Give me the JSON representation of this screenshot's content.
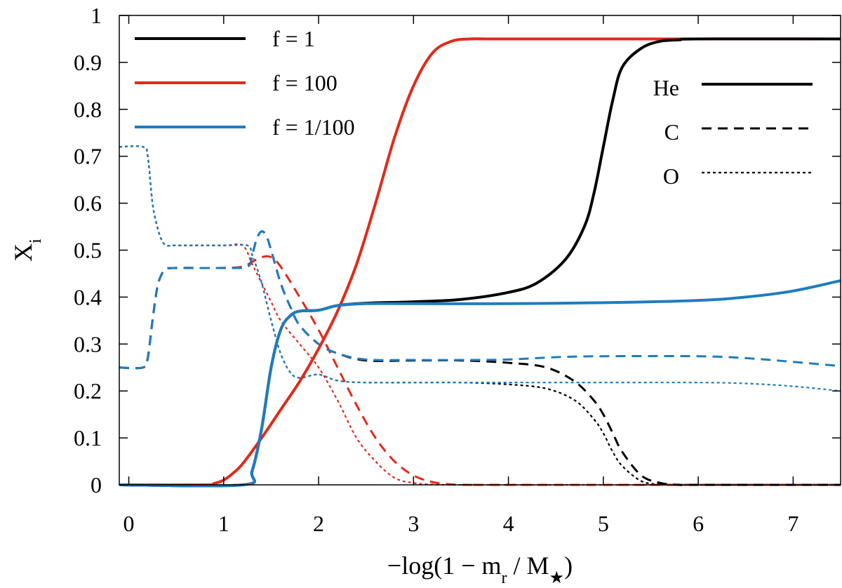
{
  "chart_data": {
    "type": "line",
    "title": "",
    "xlabel": "−log(1 − m_r / M_★)",
    "ylabel": "X_i",
    "xlim": [
      -0.1,
      7.5
    ],
    "ylim": [
      0,
      1
    ],
    "grid": false,
    "x_ticks": [
      0,
      1,
      2,
      3,
      4,
      5,
      6,
      7
    ],
    "x_tick_labels": [
      "0",
      "1",
      "2",
      "3",
      "4",
      "5",
      "6",
      "7"
    ],
    "y_ticks": [
      0,
      0.1,
      0.2,
      0.3,
      0.4,
      0.5,
      0.6,
      0.7,
      0.8,
      0.9,
      1
    ],
    "y_tick_labels": [
      "0",
      "0.1",
      "0.2",
      "0.3",
      "0.4",
      "0.5",
      "0.6",
      "0.7",
      "0.8",
      "0.9",
      "1"
    ],
    "legend_models": {
      "placement": "top-left",
      "entries": [
        {
          "label": "f = 1",
          "color": "#000000"
        },
        {
          "label": "f = 100",
          "color": "#e3291a"
        },
        {
          "label": "f = 1/100",
          "color": "#1f7cc1"
        }
      ]
    },
    "legend_species": {
      "placement": "top-right",
      "entries": [
        {
          "label": "He",
          "style": "solid"
        },
        {
          "label": "C",
          "style": "dashed"
        },
        {
          "label": "O",
          "style": "dotted"
        }
      ]
    },
    "series": [
      {
        "name": "He f = 1",
        "model": "f = 1",
        "element": "He",
        "color": "#000000",
        "style": "solid",
        "x": [
          -0.1,
          1.2,
          1.3,
          1.4,
          1.5,
          1.6,
          1.7,
          1.8,
          2.0,
          2.2,
          2.5,
          3.0,
          3.5,
          4.0,
          4.3,
          4.6,
          4.8,
          4.9,
          5.0,
          5.1,
          5.2,
          5.4,
          5.6,
          5.8,
          6.0,
          7.5
        ],
        "y": [
          0.0,
          0.0,
          0.03,
          0.12,
          0.25,
          0.33,
          0.36,
          0.37,
          0.372,
          0.382,
          0.387,
          0.39,
          0.395,
          0.41,
          0.43,
          0.48,
          0.55,
          0.62,
          0.72,
          0.82,
          0.89,
          0.93,
          0.945,
          0.948,
          0.95,
          0.95
        ]
      },
      {
        "name": "He f = 100",
        "model": "f = 100",
        "element": "He",
        "color": "#e3291a",
        "style": "solid",
        "x": [
          -0.1,
          0.8,
          0.9,
          1.0,
          1.1,
          1.2,
          1.4,
          1.6,
          1.8,
          2.0,
          2.2,
          2.4,
          2.6,
          2.8,
          3.0,
          3.2,
          3.4,
          3.6,
          3.8,
          4.0,
          7.5
        ],
        "y": [
          0.0,
          0.0,
          0.003,
          0.01,
          0.025,
          0.045,
          0.1,
          0.16,
          0.22,
          0.29,
          0.37,
          0.47,
          0.6,
          0.74,
          0.85,
          0.92,
          0.945,
          0.95,
          0.95,
          0.95,
          0.95
        ]
      },
      {
        "name": "He f = 1/100",
        "model": "f = 1/100",
        "element": "He",
        "color": "#1f7cc1",
        "style": "solid",
        "x": [
          -0.1,
          1.2,
          1.3,
          1.4,
          1.5,
          1.6,
          1.7,
          1.8,
          2.0,
          2.2,
          2.5,
          3.0,
          4.0,
          5.0,
          6.0,
          6.5,
          7.0,
          7.5
        ],
        "y": [
          0.0,
          0.0,
          0.03,
          0.12,
          0.25,
          0.33,
          0.36,
          0.37,
          0.372,
          0.382,
          0.386,
          0.386,
          0.386,
          0.388,
          0.393,
          0.4,
          0.413,
          0.435
        ]
      },
      {
        "name": "C f = 1",
        "model": "f = 1",
        "element": "C",
        "color": "#000000",
        "style": "dashed",
        "x": [
          -0.1,
          0.15,
          0.2,
          0.25,
          0.3,
          0.35,
          0.4,
          0.5,
          1.0,
          1.25,
          1.3,
          1.35,
          1.4,
          1.45,
          1.5,
          1.6,
          1.7,
          1.8,
          2.0,
          2.2,
          2.5,
          3.0,
          3.5,
          4.0,
          4.4,
          4.7,
          4.9,
          5.0,
          5.1,
          5.2,
          5.4,
          5.6,
          5.8,
          6.0,
          7.5
        ],
        "y": [
          0.25,
          0.25,
          0.27,
          0.35,
          0.42,
          0.45,
          0.46,
          0.462,
          0.462,
          0.465,
          0.49,
          0.525,
          0.54,
          0.53,
          0.5,
          0.43,
          0.38,
          0.34,
          0.3,
          0.28,
          0.265,
          0.265,
          0.265,
          0.26,
          0.25,
          0.22,
          0.18,
          0.15,
          0.11,
          0.07,
          0.02,
          0.004,
          0.0,
          0.0,
          0.0
        ]
      },
      {
        "name": "C f = 100",
        "model": "f = 100",
        "element": "C",
        "color": "#e3291a",
        "style": "dashed",
        "x": [
          -0.1,
          0.15,
          0.2,
          0.25,
          0.3,
          0.35,
          0.4,
          0.5,
          1.0,
          1.2,
          1.3,
          1.4,
          1.5,
          1.6,
          1.8,
          2.0,
          2.2,
          2.4,
          2.6,
          2.8,
          3.0,
          3.2,
          3.4,
          3.6,
          4.0,
          7.5
        ],
        "y": [
          0.25,
          0.25,
          0.27,
          0.35,
          0.42,
          0.45,
          0.46,
          0.462,
          0.462,
          0.465,
          0.475,
          0.485,
          0.485,
          0.465,
          0.4,
          0.33,
          0.25,
          0.17,
          0.1,
          0.05,
          0.02,
          0.006,
          0.001,
          0.0,
          0.0,
          0.0
        ]
      },
      {
        "name": "C f = 1/100",
        "model": "f = 1/100",
        "element": "C",
        "color": "#1f7cc1",
        "style": "dashed",
        "x": [
          -0.1,
          0.15,
          0.2,
          0.25,
          0.3,
          0.35,
          0.4,
          0.5,
          1.0,
          1.25,
          1.3,
          1.35,
          1.4,
          1.45,
          1.5,
          1.6,
          1.7,
          1.8,
          2.0,
          2.2,
          2.5,
          3.0,
          3.5,
          4.0,
          4.5,
          5.0,
          6.0,
          6.5,
          7.0,
          7.5
        ],
        "y": [
          0.25,
          0.25,
          0.27,
          0.35,
          0.42,
          0.45,
          0.46,
          0.462,
          0.462,
          0.465,
          0.49,
          0.525,
          0.54,
          0.53,
          0.5,
          0.43,
          0.38,
          0.34,
          0.3,
          0.28,
          0.267,
          0.266,
          0.266,
          0.267,
          0.272,
          0.274,
          0.274,
          0.27,
          0.262,
          0.253
        ]
      },
      {
        "name": "O f = 1",
        "model": "f = 1",
        "element": "O",
        "color": "#000000",
        "style": "dotted",
        "x": [
          -0.1,
          0.15,
          0.2,
          0.25,
          0.3,
          0.35,
          0.4,
          0.5,
          1.0,
          1.25,
          1.3,
          1.4,
          1.5,
          1.6,
          1.7,
          1.8,
          2.0,
          2.2,
          2.5,
          3.0,
          3.5,
          4.0,
          4.4,
          4.7,
          4.9,
          5.0,
          5.1,
          5.2,
          5.4,
          5.6,
          5.8,
          6.0,
          7.5
        ],
        "y": [
          0.72,
          0.72,
          0.7,
          0.6,
          0.55,
          0.52,
          0.51,
          0.51,
          0.51,
          0.51,
          0.49,
          0.43,
          0.35,
          0.28,
          0.24,
          0.228,
          0.235,
          0.222,
          0.218,
          0.218,
          0.218,
          0.214,
          0.205,
          0.18,
          0.14,
          0.11,
          0.07,
          0.04,
          0.008,
          0.001,
          0.0,
          0.0,
          0.0
        ]
      },
      {
        "name": "O f = 100",
        "model": "f = 100",
        "element": "O",
        "color": "#e3291a",
        "style": "dotted",
        "x": [
          -0.1,
          0.15,
          0.2,
          0.25,
          0.3,
          0.35,
          0.4,
          0.5,
          1.0,
          1.2,
          1.3,
          1.4,
          1.5,
          1.6,
          1.8,
          2.0,
          2.2,
          2.4,
          2.6,
          2.8,
          3.0,
          3.2,
          3.4,
          4.0,
          7.5
        ],
        "y": [
          0.72,
          0.72,
          0.7,
          0.6,
          0.55,
          0.52,
          0.51,
          0.51,
          0.51,
          0.51,
          0.47,
          0.43,
          0.39,
          0.35,
          0.3,
          0.25,
          0.18,
          0.1,
          0.05,
          0.015,
          0.004,
          0.001,
          0.0,
          0.0,
          0.0
        ]
      },
      {
        "name": "O f = 1/100",
        "model": "f = 1/100",
        "element": "O",
        "color": "#1f7cc1",
        "style": "dotted",
        "x": [
          -0.1,
          0.15,
          0.2,
          0.25,
          0.3,
          0.35,
          0.4,
          0.5,
          1.0,
          1.25,
          1.3,
          1.4,
          1.5,
          1.6,
          1.7,
          1.8,
          2.0,
          2.2,
          2.5,
          3.0,
          4.0,
          5.0,
          6.0,
          6.5,
          7.0,
          7.5
        ],
        "y": [
          0.72,
          0.72,
          0.7,
          0.6,
          0.55,
          0.52,
          0.51,
          0.51,
          0.51,
          0.51,
          0.49,
          0.43,
          0.35,
          0.28,
          0.24,
          0.228,
          0.235,
          0.222,
          0.218,
          0.218,
          0.218,
          0.218,
          0.218,
          0.216,
          0.21,
          0.2
        ]
      }
    ]
  }
}
